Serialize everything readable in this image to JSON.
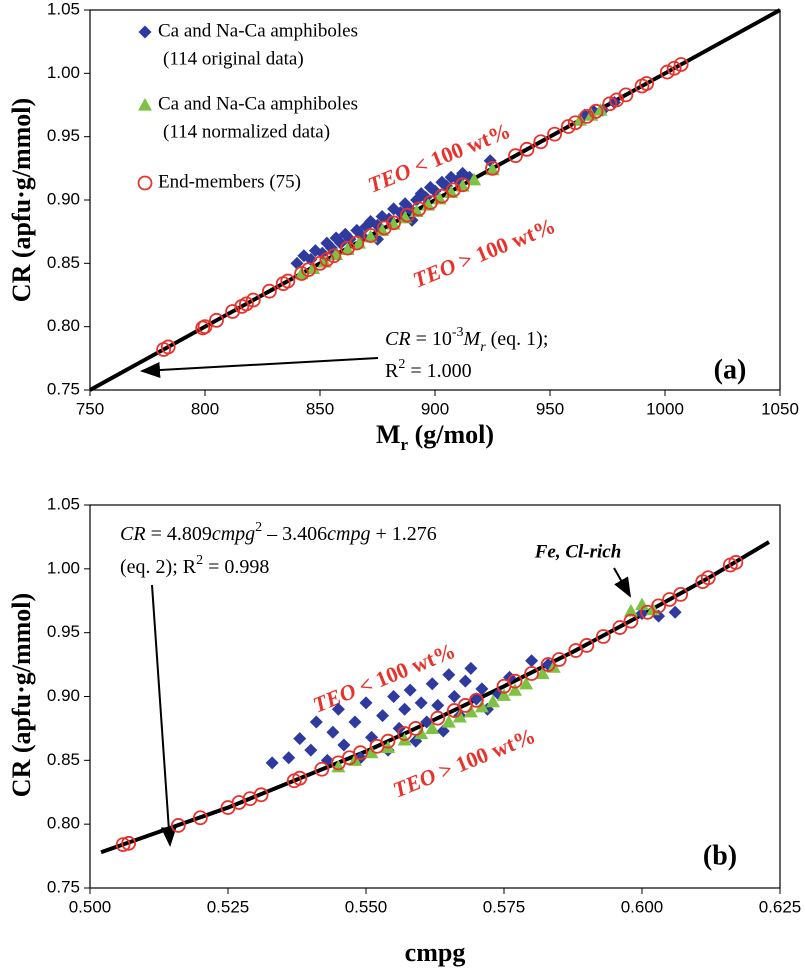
{
  "chart_data": [
    {
      "type": "scatter",
      "y_label": "CR (apfu·g/mmol)",
      "x_label": [
        "M",
        "r",
        " (g/mol)"
      ],
      "xlim": [
        750,
        1050
      ],
      "xticks": [
        750,
        800,
        850,
        900,
        950,
        1000,
        1050
      ],
      "ylim": [
        0.75,
        1.05
      ],
      "yticks": [
        0.75,
        {
          "value": 0.8,
          "label": "0.80"
        },
        0.85,
        {
          "value": 0.9,
          "label": "0.90"
        },
        0.95,
        {
          "value": 1.0,
          "label": "1.00"
        },
        1.05
      ],
      "grid": false,
      "equation": [
        "CR",
        " = 10",
        "-3",
        "M",
        "r",
        " (eq. 1);"
      ],
      "r_squared": [
        "R",
        "2",
        " = 1.000"
      ],
      "teo_low": [
        "TEO",
        " < 100 wt%"
      ],
      "teo_high": [
        "TEO",
        " > 100 wt%"
      ],
      "panel_label": "(a)",
      "fit": {
        "type": "line",
        "color": "#000000",
        "x": [
          750,
          1050
        ],
        "values": [
          0.75,
          1.05
        ]
      },
      "series": [
        {
          "name": [
            "Ca and Na-Ca amphiboles",
            "(114 original data)"
          ],
          "marker": "diamond",
          "color": "#2e3a9e",
          "x": [
            840,
            843,
            846,
            848,
            851,
            853,
            855,
            857,
            859,
            861,
            863,
            866,
            868,
            870,
            872,
            875,
            877,
            880,
            882,
            885,
            887,
            889,
            892,
            894,
            896,
            898,
            900,
            903,
            905,
            907,
            910,
            912,
            915,
            924,
            875,
            890,
            965,
            969,
            973,
            978
          ],
          "values": [
            0.85,
            0.856,
            0.853,
            0.86,
            0.858,
            0.866,
            0.862,
            0.87,
            0.866,
            0.873,
            0.869,
            0.876,
            0.872,
            0.879,
            0.883,
            0.88,
            0.887,
            0.885,
            0.893,
            0.89,
            0.897,
            0.893,
            0.9,
            0.905,
            0.902,
            0.91,
            0.907,
            0.914,
            0.911,
            0.918,
            0.916,
            0.921,
            0.918,
            0.931,
            0.869,
            0.884,
            0.967,
            0.97,
            0.971,
            0.977
          ]
        },
        {
          "name": [
            "Ca and Na-Ca amphiboles",
            "(114 normalized data)"
          ],
          "marker": "triangle",
          "color": "#7dc242",
          "x": [
            842,
            847,
            852,
            857,
            862,
            867,
            872,
            877,
            882,
            887,
            892,
            897,
            902,
            907,
            912,
            917,
            925,
            963,
            968,
            972
          ],
          "values": [
            0.842,
            0.846,
            0.851,
            0.857,
            0.861,
            0.866,
            0.871,
            0.876,
            0.881,
            0.886,
            0.891,
            0.896,
            0.901,
            0.906,
            0.911,
            0.916,
            0.924,
            0.963,
            0.967,
            0.971
          ]
        },
        {
          "name": [
            "End-members (75)"
          ],
          "marker": "circle",
          "color": "#e8322b",
          "x": [
            782,
            784,
            799,
            800,
            805,
            812,
            816,
            818,
            821,
            828,
            834,
            836,
            842,
            845,
            850,
            853,
            856,
            862,
            866,
            872,
            878,
            882,
            888,
            893,
            898,
            903,
            908,
            912,
            925,
            935,
            940,
            946,
            952,
            958,
            961,
            966,
            970,
            976,
            979,
            983,
            990,
            992,
            1001,
            1004,
            1007
          ],
          "values": [
            0.782,
            0.784,
            0.799,
            0.8,
            0.805,
            0.812,
            0.816,
            0.818,
            0.821,
            0.828,
            0.834,
            0.836,
            0.842,
            0.845,
            0.85,
            0.853,
            0.856,
            0.862,
            0.866,
            0.872,
            0.878,
            0.882,
            0.888,
            0.893,
            0.898,
            0.903,
            0.908,
            0.912,
            0.925,
            0.935,
            0.94,
            0.946,
            0.952,
            0.958,
            0.961,
            0.966,
            0.97,
            0.976,
            0.979,
            0.983,
            0.99,
            0.992,
            1.001,
            1.004,
            1.007
          ]
        }
      ]
    },
    {
      "type": "scatter",
      "y_label": "CR (apfu·g/mmol)",
      "x_label": "cmpg",
      "xlim": [
        0.5,
        0.625
      ],
      "xticks": [
        {
          "value": 0.5,
          "label": "0.500"
        },
        0.525,
        {
          "value": 0.55,
          "label": "0.550"
        },
        0.575,
        {
          "value": 0.6,
          "label": "0.600"
        },
        0.625
      ],
      "ylim": [
        0.75,
        1.05
      ],
      "yticks": [
        0.75,
        {
          "value": 0.8,
          "label": "0.80"
        },
        0.85,
        {
          "value": 0.9,
          "label": "0.90"
        },
        0.95,
        {
          "value": 1.0,
          "label": "1.00"
        },
        1.05
      ],
      "grid": false,
      "equation": [
        "CR",
        " = 4.809",
        "cmpg",
        "2",
        " – 3.406",
        "cmpg",
        " + 1.276"
      ],
      "r_squared": [
        "(eq. 2);  R",
        "2",
        " = 0.998"
      ],
      "teo_low": [
        "TEO",
        " < 100 wt%"
      ],
      "teo_high": [
        "TEO",
        " > 100 wt%"
      ],
      "note": "Fe, Cl-rich",
      "panel_label": "(b)",
      "fit": {
        "type": "line",
        "color": "#000000",
        "x": [
          0.502,
          0.5125,
          0.525,
          0.5375,
          0.55,
          0.5625,
          0.575,
          0.5875,
          0.6,
          0.6125,
          0.623
        ],
        "values": [
          0.778,
          0.794,
          0.813,
          0.835,
          0.857,
          0.882,
          0.908,
          0.935,
          0.964,
          0.994,
          1.021
        ]
      },
      "series": [
        {
          "marker": "diamond",
          "color": "#2e3a9e",
          "x": [
            0.533,
            0.536,
            0.538,
            0.54,
            0.541,
            0.543,
            0.544,
            0.545,
            0.546,
            0.548,
            0.549,
            0.55,
            0.551,
            0.553,
            0.554,
            0.555,
            0.556,
            0.557,
            0.558,
            0.559,
            0.56,
            0.561,
            0.562,
            0.563,
            0.564,
            0.565,
            0.566,
            0.567,
            0.568,
            0.569,
            0.57,
            0.571,
            0.572,
            0.574,
            0.576,
            0.58,
            0.583,
            0.6,
            0.603,
            0.606
          ],
          "values": [
            0.848,
            0.852,
            0.867,
            0.858,
            0.88,
            0.85,
            0.872,
            0.89,
            0.862,
            0.88,
            0.852,
            0.895,
            0.868,
            0.885,
            0.858,
            0.9,
            0.875,
            0.89,
            0.905,
            0.865,
            0.895,
            0.88,
            0.91,
            0.893,
            0.873,
            0.917,
            0.9,
            0.885,
            0.912,
            0.922,
            0.898,
            0.906,
            0.89,
            0.902,
            0.915,
            0.928,
            0.925,
            0.965,
            0.963,
            0.966
          ]
        },
        {
          "marker": "triangle",
          "color": "#7dc242",
          "x": [
            0.545,
            0.548,
            0.551,
            0.554,
            0.557,
            0.56,
            0.562,
            0.565,
            0.567,
            0.569,
            0.571,
            0.573,
            0.575,
            0.577,
            0.579,
            0.582,
            0.584,
            0.598,
            0.6,
            0.602
          ],
          "values": [
            0.845,
            0.85,
            0.856,
            0.86,
            0.866,
            0.871,
            0.875,
            0.88,
            0.884,
            0.888,
            0.892,
            0.896,
            0.901,
            0.905,
            0.91,
            0.918,
            0.923,
            0.967,
            0.972,
            0.968
          ]
        },
        {
          "marker": "circle",
          "color": "#e8322b",
          "x": [
            0.506,
            0.507,
            0.516,
            0.52,
            0.525,
            0.527,
            0.529,
            0.531,
            0.537,
            0.538,
            0.542,
            0.545,
            0.547,
            0.549,
            0.552,
            0.554,
            0.557,
            0.559,
            0.563,
            0.566,
            0.568,
            0.57,
            0.575,
            0.577,
            0.58,
            0.583,
            0.585,
            0.588,
            0.59,
            0.593,
            0.596,
            0.598,
            0.601,
            0.603,
            0.605,
            0.607,
            0.611,
            0.612,
            0.616,
            0.617
          ],
          "values": [
            0.784,
            0.785,
            0.799,
            0.805,
            0.813,
            0.817,
            0.82,
            0.823,
            0.834,
            0.836,
            0.843,
            0.848,
            0.852,
            0.856,
            0.861,
            0.865,
            0.871,
            0.875,
            0.883,
            0.889,
            0.893,
            0.897,
            0.908,
            0.912,
            0.918,
            0.925,
            0.929,
            0.936,
            0.94,
            0.947,
            0.954,
            0.959,
            0.966,
            0.971,
            0.976,
            0.98,
            0.99,
            0.993,
            1.003,
            1.005
          ]
        }
      ]
    }
  ]
}
